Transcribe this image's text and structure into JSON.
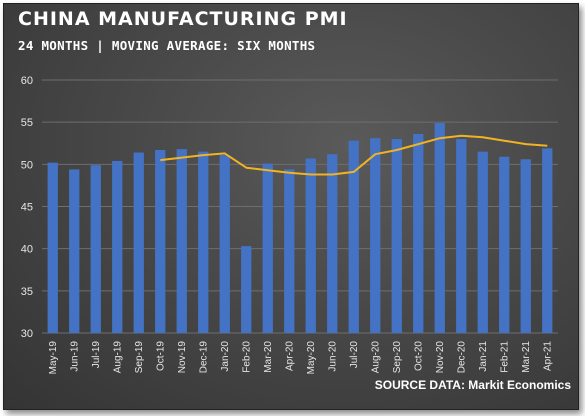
{
  "header": {
    "title": "CHINA MANUFACTURING PMI",
    "subtitle": "24 MONTHS | MOVING AVERAGE: SIX MONTHS"
  },
  "footer": {
    "source": "SOURCE DATA: Markit Economics"
  },
  "colors": {
    "bar": "#4472c4",
    "moving_average": "#f0b323",
    "grid": "#6e6e6e",
    "background": "#444444"
  },
  "chart_data": {
    "type": "bar",
    "title": "CHINA MANUFACTURING PMI",
    "subtitle": "24 MONTHS | MOVING AVERAGE: SIX MONTHS",
    "xlabel": "",
    "ylabel": "",
    "ylim": [
      30,
      60
    ],
    "yticks": [
      30,
      35,
      40,
      45,
      50,
      55,
      60
    ],
    "grid": true,
    "categories": [
      "May-19",
      "Jun-19",
      "Jul-19",
      "Aug-19",
      "Sep-19",
      "Oct-19",
      "Nov-19",
      "Dec-19",
      "Jan-20",
      "Feb-20",
      "Mar-20",
      "Apr-20",
      "May-20",
      "Jun-20",
      "Jul-20",
      "Aug-20",
      "Sep-20",
      "Oct-20",
      "Nov-20",
      "Dec-20",
      "Jan-21",
      "Feb-21",
      "Mar-21",
      "Apr-21"
    ],
    "series": [
      {
        "type": "bar",
        "values": [
          50.2,
          49.4,
          49.9,
          50.4,
          51.4,
          51.7,
          51.8,
          51.5,
          51.1,
          40.3,
          50.1,
          49.4,
          50.7,
          51.2,
          52.8,
          53.1,
          53.0,
          53.6,
          54.9,
          53.0,
          51.5,
          50.9,
          50.6,
          51.9
        ]
      },
      {
        "type": "line",
        "values": [
          null,
          null,
          null,
          null,
          null,
          50.5,
          50.8,
          51.1,
          51.3,
          49.6,
          49.3,
          49.0,
          48.8,
          48.8,
          49.1,
          51.2,
          51.7,
          52.4,
          53.1,
          53.4,
          53.2,
          52.8,
          52.4,
          52.2
        ]
      }
    ],
    "source": "SOURCE DATA: Markit Economics"
  }
}
